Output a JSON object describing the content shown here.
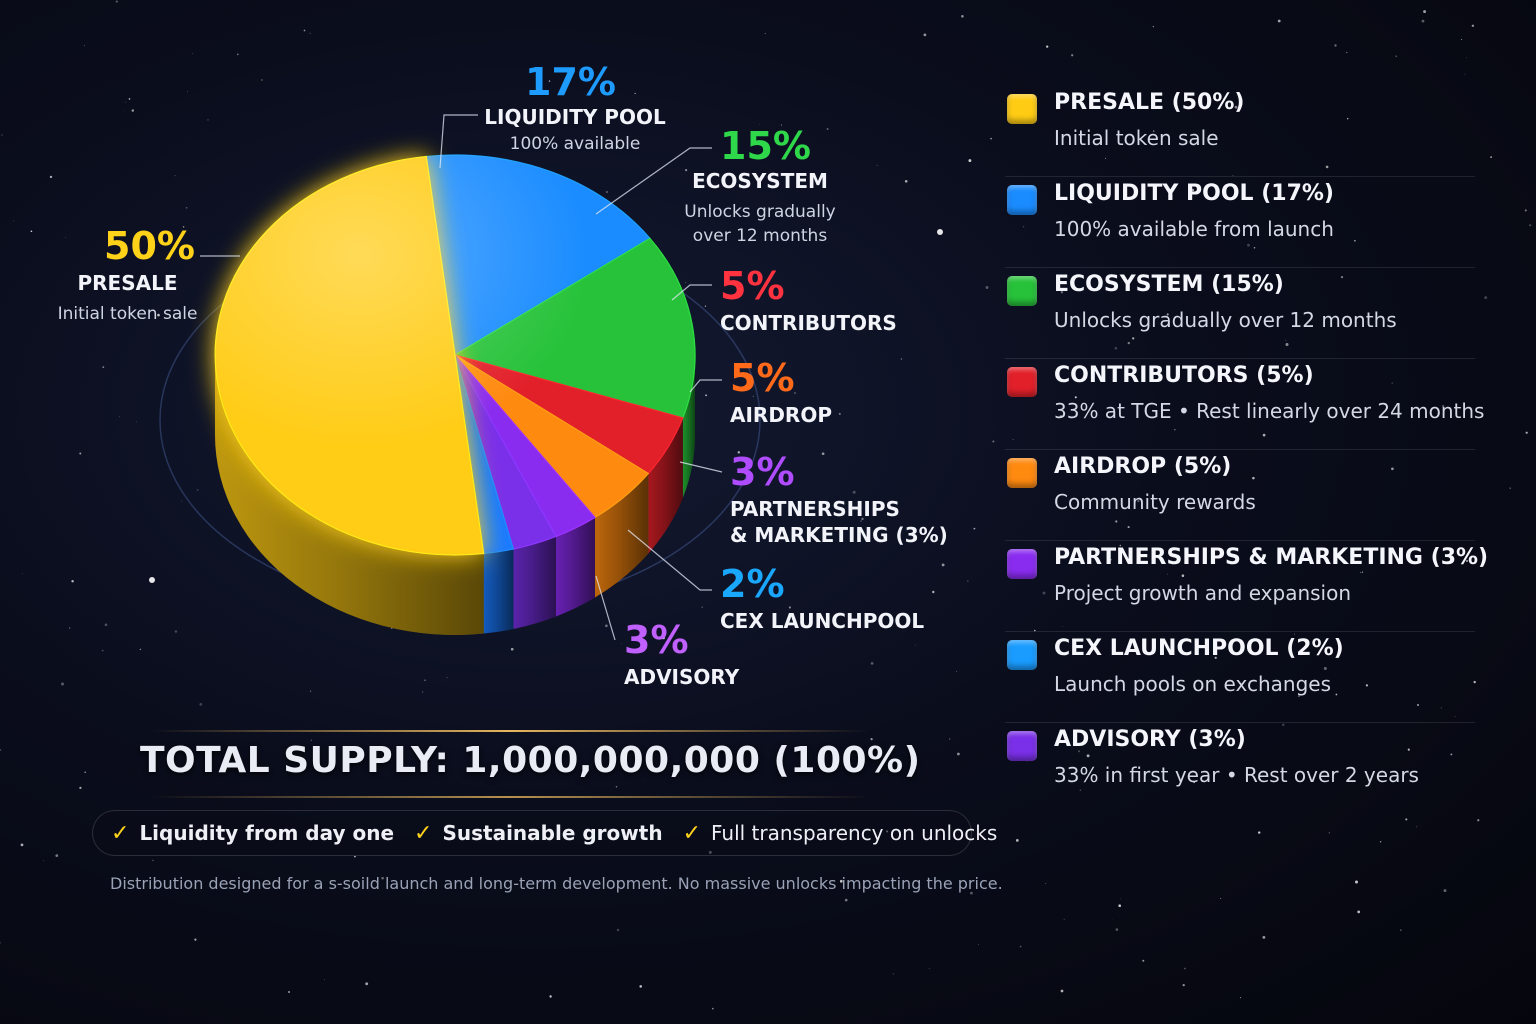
{
  "chart_data": {
    "type": "pie",
    "title": "",
    "slices": [
      {
        "key": "presale",
        "pct_label": "50%",
        "name": "PRESALE",
        "sub": [
          "Initial token sale"
        ],
        "value": 50,
        "color": "#ffcc14"
      },
      {
        "key": "liquidity",
        "pct_label": "17%",
        "name": "LIQUIDITY POOL",
        "sub": [
          "100% available"
        ],
        "value": 17,
        "color": "#1a8cff"
      },
      {
        "key": "ecosystem",
        "pct_label": "15%",
        "name": "ECOSYSTEM",
        "sub": [
          "Unlocks gradually",
          "over 12 months"
        ],
        "value": 15,
        "color": "#27c23a"
      },
      {
        "key": "contributors",
        "pct_label": "5%",
        "name": "CONTRIBUTORS",
        "sub": [],
        "value": 5,
        "color": "#e2202a"
      },
      {
        "key": "airdrop",
        "pct_label": "5%",
        "name": "AIRDROP",
        "sub": [],
        "value": 5,
        "color": "#ff8a10"
      },
      {
        "key": "partnerships",
        "pct_label": "3%",
        "name": "PARTNERSHIPS",
        "name2": "& MARKETING (3%)",
        "sub": [],
        "value": 3,
        "color": "#8a2cf0"
      },
      {
        "key": "cex",
        "pct_label": "2%",
        "name": "CEX LAUNCHPOOL",
        "sub": [],
        "value": 2,
        "color": "#1a7aff"
      },
      {
        "key": "advisory",
        "pct_label": "3%",
        "name": "ADVISORY",
        "sub": [],
        "value": 3,
        "color": "#7a30e8"
      }
    ],
    "legend_position": "right"
  },
  "label_colors": {
    "presale": "#ffd21a",
    "liquidity": "#1e9bff",
    "ecosystem": "#2fd84a",
    "contributors": "#ff3340",
    "airdrop": "#ff6a1a",
    "partnerships": "#b04cff",
    "cex": "#1aa8ff",
    "advisory": "#c060ff"
  },
  "legend": [
    {
      "title": "PRESALE (50%)",
      "desc": "Initial token sale",
      "color": "#ffcc14"
    },
    {
      "title": "LIQUIDITY POOL (17%)",
      "desc": "100% available from launch",
      "color": "#1a8cff"
    },
    {
      "title": "ECOSYSTEM (15%)",
      "desc": "Unlocks gradually over 12 months",
      "color": "#27c23a"
    },
    {
      "title": "CONTRIBUTORS (5%)",
      "desc": "33% at TGE • Rest linearly over 24 months",
      "color": "#e2202a"
    },
    {
      "title": "AIRDROP (5%)",
      "desc": "Community rewards",
      "color": "#ff8a10"
    },
    {
      "title": "PARTNERSHIPS & MARKETING (3%)",
      "desc": "Project growth and expansion",
      "color": "#8a2cf0"
    },
    {
      "title": "CEX LAUNCHPOOL (2%)",
      "desc": "Launch pools on exchanges",
      "color": "#1a9cff"
    },
    {
      "title": "ADVISORY (3%)",
      "desc": "33% in first year • Rest over 2 years",
      "color": "#7a30e8"
    }
  ],
  "total_supply": "TOTAL SUPPLY: 1,000,000,000 (100%)",
  "features": [
    {
      "check": "✓",
      "text": "Liquidity from day one",
      "bold": true
    },
    {
      "check": "✓",
      "text": "Sustainable growth",
      "bold": true
    },
    {
      "check": "✓",
      "text": "Full transparency on unlocks",
      "bold": false
    }
  ],
  "footnote": "Distribution designed for a s-soild launch and long-term development. No massive unlocks impacting the price."
}
